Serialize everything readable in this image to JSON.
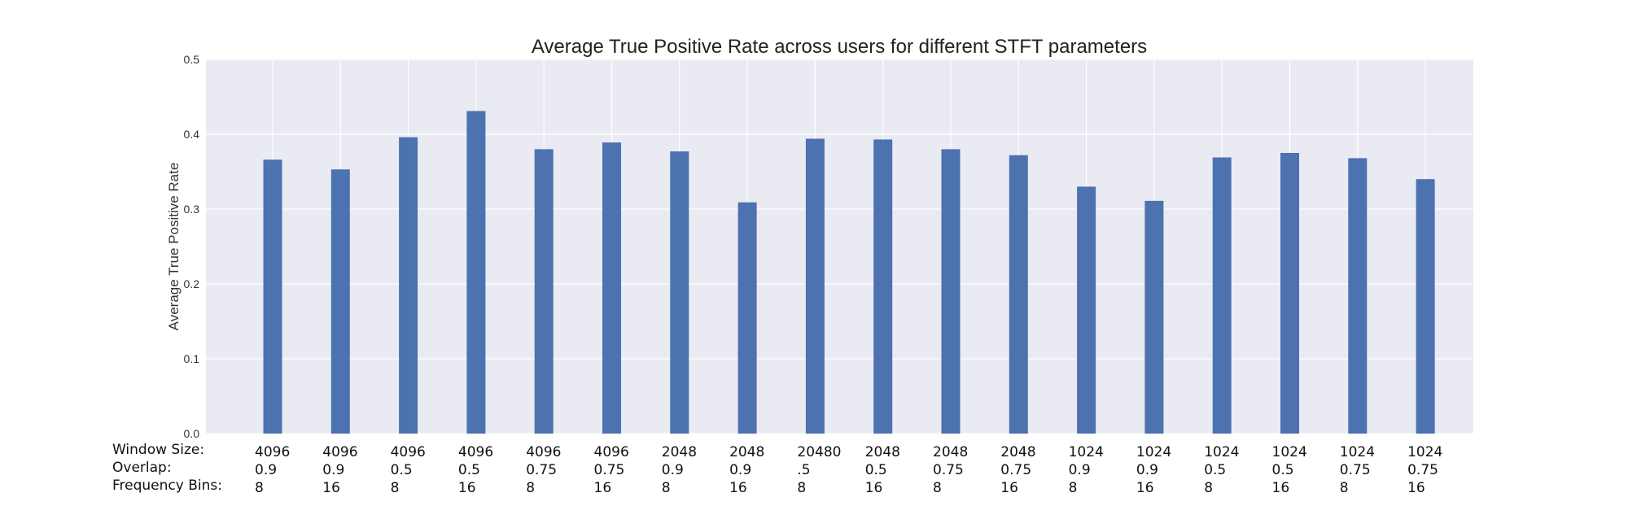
{
  "chart_data": {
    "type": "bar",
    "title": "Average True Positive Rate across users for different STFT parameters",
    "xlabel": "",
    "ylabel": "Average True Positive Rate",
    "ylim": [
      0,
      0.5
    ],
    "yticks": [
      "0.0",
      "0.1",
      "0.2",
      "0.3",
      "0.4",
      "0.5"
    ],
    "grid": true,
    "row_labels": [
      "Window Size:",
      "Overlap:",
      "Frequency Bins:"
    ],
    "categories": [
      {
        "window": "4096",
        "overlap": "0.9",
        "bins": "8"
      },
      {
        "window": "4096",
        "overlap": "0.9",
        "bins": "16"
      },
      {
        "window": "4096",
        "overlap": "0.5",
        "bins": "8"
      },
      {
        "window": "4096",
        "overlap": "0.5",
        "bins": "16"
      },
      {
        "window": "4096",
        "overlap": "0.75",
        "bins": "8"
      },
      {
        "window": "4096",
        "overlap": "0.75",
        "bins": "16"
      },
      {
        "window": "2048",
        "overlap": "0.9",
        "bins": "8"
      },
      {
        "window": "2048",
        "overlap": "0.9",
        "bins": "16"
      },
      {
        "window": "20480",
        "overlap": ".5",
        "bins": "8"
      },
      {
        "window": "2048",
        "overlap": "0.5",
        "bins": "16"
      },
      {
        "window": "2048",
        "overlap": "0.75",
        "bins": "8"
      },
      {
        "window": "2048",
        "overlap": "0.75",
        "bins": "16"
      },
      {
        "window": "1024",
        "overlap": "0.9",
        "bins": "8"
      },
      {
        "window": "1024",
        "overlap": "0.9",
        "bins": "16"
      },
      {
        "window": "1024",
        "overlap": "0.5",
        "bins": "8"
      },
      {
        "window": "1024",
        "overlap": "0.5",
        "bins": "16"
      },
      {
        "window": "1024",
        "overlap": "0.75",
        "bins": "8"
      },
      {
        "window": "1024",
        "overlap": "0.75",
        "bins": "16"
      }
    ],
    "values": [
      0.366,
      0.353,
      0.396,
      0.431,
      0.38,
      0.389,
      0.377,
      0.309,
      0.394,
      0.393,
      0.38,
      0.372,
      0.33,
      0.311,
      0.369,
      0.375,
      0.368,
      0.34
    ],
    "colors": {
      "bar": "#4c72b0",
      "plot_bg": "#eaeaf2",
      "grid": "#ffffff"
    }
  }
}
